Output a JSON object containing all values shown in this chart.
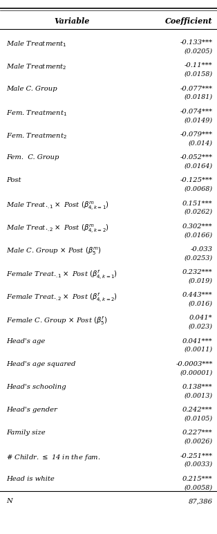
{
  "header": [
    "Variable",
    "Coefficient"
  ],
  "rows": [
    {
      "var": "Male Treatment$_1$",
      "coef": "-0.133***",
      "se": "(0.0205)"
    },
    {
      "var": "Male Treatment$_2$",
      "coef": "-0.11***",
      "se": "(0.0158)"
    },
    {
      "var": "Male C. Group",
      "coef": "-0.077***",
      "se": "(0.0181)"
    },
    {
      "var": "Fem. Treatment$_1$",
      "coef": "-0.074***",
      "se": "(0.0149)"
    },
    {
      "var": "Fem. Treatment$_2$",
      "coef": "-0.079***",
      "se": "(0.014)"
    },
    {
      "var": "Fem.  C. Group",
      "coef": "-0.052***",
      "se": "(0.0164)"
    },
    {
      "var": "Post",
      "coef": "-0.125***",
      "se": "(0.0068)"
    },
    {
      "var": "Male Treat.$_{.1}\\times$ Post $(\\beta^m_{4,k=1})$",
      "coef": "0.151***",
      "se": "(0.0262)"
    },
    {
      "var": "Male Treat.$_{.2}\\times$ Post $(\\beta^m_{4,k=2})$",
      "coef": "0.302***",
      "se": "(0.0166)"
    },
    {
      "var": "Male C. Group $\\times$ Post $(\\beta^m_5)$",
      "coef": "-0.033",
      "se": "(0.0253)"
    },
    {
      "var": "Female Treat.$_{.1}\\times$ Post $(\\beta^f_{4,k=1})$",
      "coef": "0.232***",
      "se": "(0.019)"
    },
    {
      "var": "Female Treat.$_{.2}\\times$ Post $(\\beta^f_{4,k=2})$",
      "coef": "0.443***",
      "se": "(0.016)"
    },
    {
      "var": "Female C. Group $\\times$ Post $(\\beta^f_5)$",
      "coef": "0.041*",
      "se": "(0.023)"
    },
    {
      "var": "Head's age",
      "coef": "0.041***",
      "se": "(0.0011)"
    },
    {
      "var": "Head's age squared",
      "coef": "-0.0003***",
      "se": "(0.00001)"
    },
    {
      "var": "Head's schooling",
      "coef": "0.138***",
      "se": "(0.0013)"
    },
    {
      "var": "Head's gender",
      "coef": "0.242***",
      "se": "(0.0105)"
    },
    {
      "var": "Family size",
      "coef": "0.227***",
      "se": "(0.0026)"
    },
    {
      "var": "# Childr. $\\leq$ 14 in the fam.",
      "coef": "-0.251***",
      "se": "(0.0033)"
    },
    {
      "var": "Head is white",
      "coef": "0.215***",
      "se": "(0.0058)"
    }
  ],
  "footer": [
    "N",
    "87,386"
  ],
  "bg_color": "#ffffff",
  "text_color": "#000000",
  "font_size": 7.2,
  "header_font_size": 8.0
}
